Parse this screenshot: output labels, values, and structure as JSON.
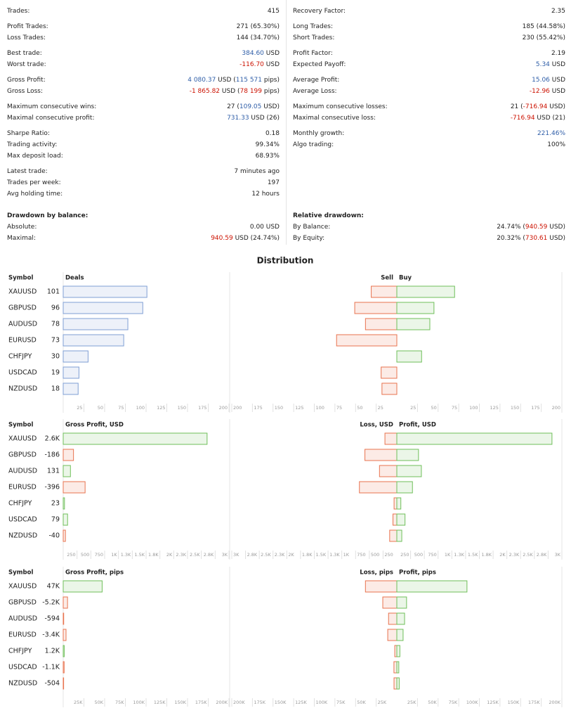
{
  "stats": {
    "left": [
      [
        {
          "label": "Trades:",
          "value": "415"
        }
      ],
      [
        {
          "label": "Profit Trades:",
          "value": "271 (65.30%)"
        },
        {
          "label": "Loss Trades:",
          "value": "144 (34.70%)"
        }
      ],
      [
        {
          "label": "Best trade:",
          "value": [
            {
              "text": "384.60",
              "color": "#2f5ea8"
            },
            " USD"
          ]
        },
        {
          "label": "Worst trade:",
          "value": [
            {
              "text": "-116.70",
              "color": "#cc1100"
            },
            " USD"
          ]
        }
      ],
      [
        {
          "label": "Gross Profit:",
          "value": [
            {
              "text": "4 080.37",
              "color": "#2f5ea8"
            },
            " USD (",
            {
              "text": "115 571",
              "color": "#2f5ea8"
            },
            " pips)"
          ]
        },
        {
          "label": "Gross Loss:",
          "value": [
            {
              "text": "-1 865.82",
              "color": "#cc1100"
            },
            " USD (",
            {
              "text": "78 199",
              "color": "#cc1100"
            },
            " pips)"
          ]
        }
      ],
      [
        {
          "label": "Maximum consecutive wins:",
          "value": [
            "27 (",
            {
              "text": "109.05",
              "color": "#2f5ea8"
            },
            " USD)"
          ]
        },
        {
          "label": "Maximal consecutive profit:",
          "value": [
            {
              "text": "731.33",
              "color": "#2f5ea8"
            },
            " USD (26)"
          ]
        }
      ],
      [
        {
          "label": "Sharpe Ratio:",
          "value": "0.18"
        },
        {
          "label": "Trading activity:",
          "value": "99.34%"
        },
        {
          "label": "Max deposit load:",
          "value": "68.93%"
        }
      ],
      [
        {
          "label": "Latest trade:",
          "value": "7 minutes ago"
        },
        {
          "label": "Trades per week:",
          "value": "197"
        },
        {
          "label": "Avg holding time:",
          "value": "12 hours"
        }
      ]
    ],
    "right": [
      [
        {
          "label": "Recovery Factor:",
          "value": "2.35"
        }
      ],
      [
        {
          "label": "Long Trades:",
          "value": "185 (44.58%)"
        },
        {
          "label": "Short Trades:",
          "value": "230 (55.42%)"
        }
      ],
      [
        {
          "label": "Profit Factor:",
          "value": "2.19"
        },
        {
          "label": "Expected Payoff:",
          "value": [
            {
              "text": "5.34",
              "color": "#2f5ea8"
            },
            " USD"
          ]
        }
      ],
      [
        {
          "label": "Average Profit:",
          "value": [
            {
              "text": "15.06",
              "color": "#2f5ea8"
            },
            " USD"
          ]
        },
        {
          "label": "Average Loss:",
          "value": [
            {
              "text": "-12.96",
              "color": "#cc1100"
            },
            " USD"
          ]
        }
      ],
      [
        {
          "label": "Maximum consecutive losses:",
          "value": [
            "21 (",
            {
              "text": "-716.94",
              "color": "#cc1100"
            },
            " USD)"
          ]
        },
        {
          "label": "Maximal consecutive loss:",
          "value": [
            {
              "text": "-716.94",
              "color": "#cc1100"
            },
            " USD (21)"
          ]
        }
      ],
      [
        {
          "label": "Monthly growth:",
          "value": [
            {
              "text": "221.46%",
              "color": "#2f5ea8"
            }
          ]
        },
        {
          "label": "Algo trading:",
          "value": "100%"
        }
      ]
    ]
  },
  "drawdown": {
    "left": {
      "title": "Drawdown by balance:",
      "rows": [
        {
          "label": "Absolute:",
          "value": "0.00 USD"
        },
        {
          "label": "Maximal:",
          "value": [
            {
              "text": "940.59",
              "color": "#cc1100"
            },
            " USD (24.74%)"
          ]
        }
      ]
    },
    "right": {
      "title": "Relative drawdown:",
      "rows": [
        {
          "label": "By Balance:",
          "value": [
            "24.74% (",
            {
              "text": "940.59",
              "color": "#cc1100"
            },
            " USD)"
          ]
        },
        {
          "label": "By Equity:",
          "value": [
            "20.32% (",
            {
              "text": "730.61",
              "color": "#cc1100"
            },
            " USD)"
          ]
        }
      ]
    }
  },
  "distribution_title": "Distribution",
  "chart_data": [
    {
      "type": "bar",
      "category_header": "Symbol",
      "categories": [
        "XAUUSD",
        "GBPUSD",
        "AUDUSD",
        "EURUSD",
        "CHFJPY",
        "USDCAD",
        "NZDUSD"
      ],
      "left": {
        "title": "Deals",
        "values": [
          101,
          96,
          78,
          73,
          30,
          19,
          18
        ],
        "color": "#7f9fd4",
        "xlim": [
          0,
          200
        ],
        "xticks": [
          25,
          50,
          75,
          100,
          125,
          150,
          175,
          200
        ]
      },
      "right": {
        "type": "diverging_bar",
        "series": [
          {
            "name": "Sell",
            "color": "#e8734f",
            "values": [
              31,
              51,
              38,
              73,
              0,
              19,
              18
            ]
          },
          {
            "name": "Buy",
            "color": "#6fbf5a",
            "values": [
              70,
              45,
              40,
              0,
              30,
              0,
              0
            ]
          }
        ],
        "xlim": [
          -200,
          200
        ],
        "xticks": [
          {
            "value": -200,
            "label": "200"
          },
          {
            "value": -175,
            "label": "175"
          },
          {
            "value": -150,
            "label": "150"
          },
          {
            "value": -125,
            "label": "125"
          },
          {
            "value": -100,
            "label": "100"
          },
          {
            "value": -75,
            "label": "75"
          },
          {
            "value": -50,
            "label": "50"
          },
          {
            "value": -25,
            "label": "25"
          },
          25,
          50,
          75,
          100,
          125,
          150,
          175,
          200
        ]
      }
    },
    {
      "type": "bar",
      "category_header": "Symbol",
      "categories": [
        "XAUUSD",
        "GBPUSD",
        "AUDUSD",
        "EURUSD",
        "CHFJPY",
        "USDCAD",
        "NZDUSD"
      ],
      "left": {
        "title": "Gross Profit, USD",
        "values": [
          2604,
          -186,
          131,
          -396,
          23,
          79,
          -40
        ],
        "value_labels": [
          "2.6K",
          "-186",
          "131",
          "-396",
          "23",
          "79",
          "-40"
        ],
        "positive_color": "#6fbf5a",
        "negative_color": "#e8734f",
        "xlim": [
          0,
          3000
        ],
        "xticks": [
          250,
          500,
          750,
          {
            "value": 1000,
            "label": "1K"
          },
          {
            "value": 1250,
            "label": "1.3K"
          },
          {
            "value": 1500,
            "label": "1.5K"
          },
          {
            "value": 1750,
            "label": "1.8K"
          },
          {
            "value": 2000,
            "label": "2K"
          },
          {
            "value": 2250,
            "label": "2.3K"
          },
          {
            "value": 2500,
            "label": "2.5K"
          },
          {
            "value": 2750,
            "label": "2.8K"
          },
          {
            "value": 3000,
            "label": "3K"
          }
        ]
      },
      "right": {
        "type": "diverging_bar",
        "series": [
          {
            "name": "Loss, USD",
            "color": "#e8734f",
            "values": [
              216,
              580,
              315,
              680,
              50,
              70,
              130
            ]
          },
          {
            "name": "Profit, USD",
            "color": "#6fbf5a",
            "values": [
              2820,
              394,
              446,
              284,
              73,
              149,
              90
            ]
          }
        ],
        "xlim": [
          -3000,
          3000
        ],
        "xticks": [
          {
            "value": -3000,
            "label": "3K"
          },
          {
            "value": -2750,
            "label": "2.8K"
          },
          {
            "value": -2500,
            "label": "2.5K"
          },
          {
            "value": -2250,
            "label": "2.3K"
          },
          {
            "value": -2000,
            "label": "2K"
          },
          {
            "value": -1750,
            "label": "1.8K"
          },
          {
            "value": -1500,
            "label": "1.5K"
          },
          {
            "value": -1250,
            "label": "1.3K"
          },
          {
            "value": -1000,
            "label": "1K"
          },
          {
            "value": -750,
            "label": "750"
          },
          {
            "value": -500,
            "label": "500"
          },
          {
            "value": -250,
            "label": "250"
          },
          250,
          500,
          750,
          {
            "value": 1000,
            "label": "1K"
          },
          {
            "value": 1250,
            "label": "1.3K"
          },
          {
            "value": 1500,
            "label": "1.5K"
          },
          {
            "value": 1750,
            "label": "1.8K"
          },
          {
            "value": 2000,
            "label": "2K"
          },
          {
            "value": 2250,
            "label": "2.3K"
          },
          {
            "value": 2500,
            "label": "2.5K"
          },
          {
            "value": 2750,
            "label": "2.8K"
          },
          {
            "value": 3000,
            "label": "3K"
          }
        ]
      }
    },
    {
      "type": "bar",
      "category_header": "Symbol",
      "categories": [
        "XAUUSD",
        "GBPUSD",
        "AUDUSD",
        "EURUSD",
        "CHFJPY",
        "USDCAD",
        "NZDUSD"
      ],
      "left": {
        "title": "Gross Profit, pips",
        "values": [
          46970,
          -5200,
          -594,
          -3400,
          1200,
          -1100,
          -504
        ],
        "value_labels": [
          "47K",
          "-5.2K",
          "-594",
          "-3.4K",
          "1.2K",
          "-1.1K",
          "-504"
        ],
        "positive_color": "#6fbf5a",
        "negative_color": "#e8734f",
        "xlim": [
          0,
          200000
        ],
        "xticks": [
          {
            "value": 25000,
            "label": "25K"
          },
          {
            "value": 50000,
            "label": "50K"
          },
          {
            "value": 75000,
            "label": "75K"
          },
          {
            "value": 100000,
            "label": "100K"
          },
          {
            "value": 125000,
            "label": "125K"
          },
          {
            "value": 150000,
            "label": "150K"
          },
          {
            "value": 175000,
            "label": "175K"
          },
          {
            "value": 200000,
            "label": "200K"
          }
        ]
      },
      "right": {
        "type": "diverging_bar",
        "series": [
          {
            "name": "Loss, pips",
            "color": "#e8734f",
            "values": [
              38030,
              17000,
              10000,
              11000,
              2500,
              3500,
              3400
            ]
          },
          {
            "name": "Profit, pips",
            "color": "#6fbf5a",
            "values": [
              85000,
              11800,
              9400,
              7600,
              3700,
              2400,
              2900
            ]
          }
        ],
        "xlim": [
          -200000,
          200000
        ],
        "xticks": [
          {
            "value": -200000,
            "label": "200K"
          },
          {
            "value": -175000,
            "label": "175K"
          },
          {
            "value": -150000,
            "label": "150K"
          },
          {
            "value": -125000,
            "label": "125K"
          },
          {
            "value": -100000,
            "label": "100K"
          },
          {
            "value": -75000,
            "label": "75K"
          },
          {
            "value": -50000,
            "label": "50K"
          },
          {
            "value": -25000,
            "label": "25K"
          },
          {
            "value": 25000,
            "label": "25K"
          },
          {
            "value": 50000,
            "label": "50K"
          },
          {
            "value": 75000,
            "label": "75K"
          },
          {
            "value": 100000,
            "label": "100K"
          },
          {
            "value": 125000,
            "label": "125K"
          },
          {
            "value": 150000,
            "label": "150K"
          },
          {
            "value": 175000,
            "label": "175K"
          },
          {
            "value": 200000,
            "label": "200K"
          }
        ]
      }
    }
  ]
}
